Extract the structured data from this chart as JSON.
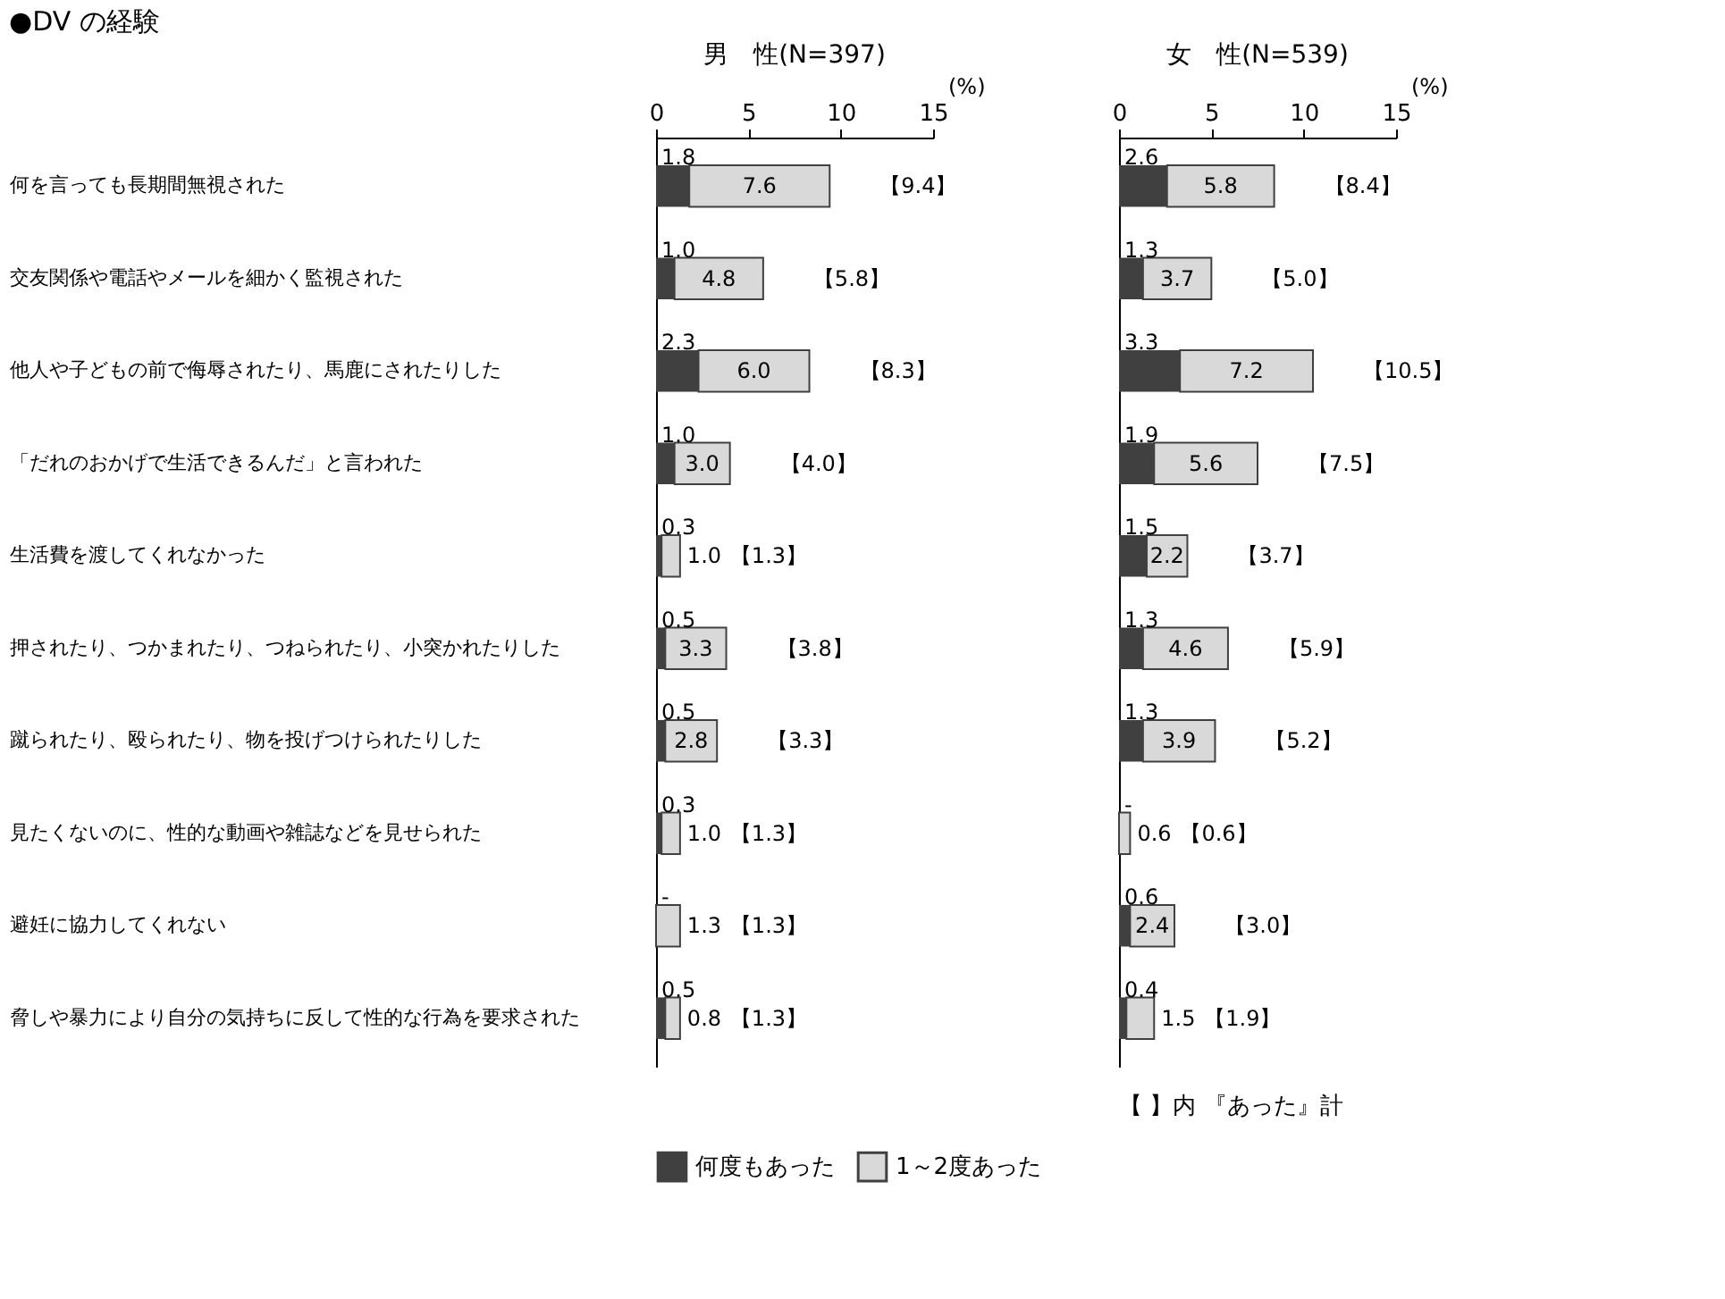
{
  "chart_data": [
    {
      "type": "bar",
      "orientation": "horizontal",
      "stacked": true,
      "title": "●DV の経験",
      "subtitle": "男　性(N=397)",
      "xlabel": "(%)",
      "xlim": [
        0,
        15
      ],
      "xticks": [
        0,
        5,
        10,
        15
      ],
      "grid": false,
      "legend": "bottom",
      "categories": [
        "何を言っても長期間無視された",
        "交友関係や電話やメールを細かく監視された",
        "他人や子どもの前で侮辱されたり、馬鹿にされたりした",
        "「だれのおかげで生活できるんだ」と言われた",
        "生活費を渡してくれなかった",
        "押されたり、つかまれたり、つねられたり、小突かれたりした",
        "蹴られたり、殴られたり、物を投げつけられたりした",
        "見たくないのに、性的な動画や雑誌などを見せられた",
        "避妊に協力してくれない",
        "脅しや暴力により自分の気持ちに反して性的な行為を要求された"
      ],
      "series": [
        {
          "name": "何度もあった",
          "color": "#404040",
          "values": [
            1.8,
            1.0,
            2.3,
            1.0,
            0.3,
            0.5,
            0.5,
            0.3,
            null,
            0.5
          ],
          "value_labels": [
            "1.8",
            "1.0",
            "2.3",
            "1.0",
            "0.3",
            "0.5",
            "0.5",
            "0.3",
            "-",
            "0.5"
          ]
        },
        {
          "name": "1～2度あった",
          "color": "#d9d9d9",
          "values": [
            7.6,
            4.8,
            6.0,
            3.0,
            1.0,
            3.3,
            2.8,
            1.0,
            1.3,
            0.8
          ],
          "value_labels": [
            "7.6",
            "4.8",
            "6.0",
            "3.0",
            "1.0",
            "3.3",
            "2.8",
            "1.0",
            "1.3",
            "0.8"
          ]
        }
      ],
      "totals": [
        "【9.4】",
        "【5.8】",
        "【8.3】",
        "【4.0】",
        "【1.3】",
        "【3.8】",
        "【3.3】",
        "【1.3】",
        "【1.3】",
        "【1.3】"
      ]
    },
    {
      "type": "bar",
      "orientation": "horizontal",
      "stacked": true,
      "subtitle": "女　性(N=539)",
      "xlabel": "(%)",
      "xlim": [
        0,
        15
      ],
      "xticks": [
        0,
        5,
        10,
        15
      ],
      "grid": false,
      "legend": "bottom",
      "tick_labels": "x",
      "annotations": [
        "【 】内 『あった』計"
      ],
      "categories": [
        "何を言っても長期間無視された",
        "交友関係や電話やメールを細かく監視された",
        "他人や子どもの前で侮辱されたり、馬鹿にされたりした",
        "「だれのおかげで生活できるんだ」と言われた",
        "生活費を渡してくれなかった",
        "押されたり、つかまれたり、つねられたり、小突かれたりした",
        "蹴られたり、殴られたり、物を投げつけられたりした",
        "見たくないのに、性的な動画や雑誌などを見せられた",
        "避妊に協力してくれない",
        "脅しや暴力により自分の気持ちに反して性的な行為を要求された"
      ],
      "series": [
        {
          "name": "何度もあった",
          "color": "#404040",
          "values": [
            2.6,
            1.3,
            3.3,
            1.9,
            1.5,
            1.3,
            1.3,
            null,
            0.6,
            0.4
          ],
          "value_labels": [
            "2.6",
            "1.3",
            "3.3",
            "1.9",
            "1.5",
            "1.3",
            "1.3",
            "-",
            "0.6",
            "0.4"
          ]
        },
        {
          "name": "1～2度あった",
          "color": "#d9d9d9",
          "values": [
            5.8,
            3.7,
            7.2,
            5.6,
            2.2,
            4.6,
            3.9,
            0.6,
            2.4,
            1.5
          ],
          "value_labels": [
            "5.8",
            "3.7",
            "7.2",
            "5.6",
            "2.2",
            "4.6",
            "3.9",
            "0.6",
            "2.4",
            "1.5"
          ]
        }
      ],
      "totals": [
        "【8.4】",
        "【5.0】",
        "【10.5】",
        "【7.5】",
        "【3.7】",
        "【5.9】",
        "【5.2】",
        "【0.6】",
        "【3.0】",
        "【1.9】"
      ]
    }
  ]
}
